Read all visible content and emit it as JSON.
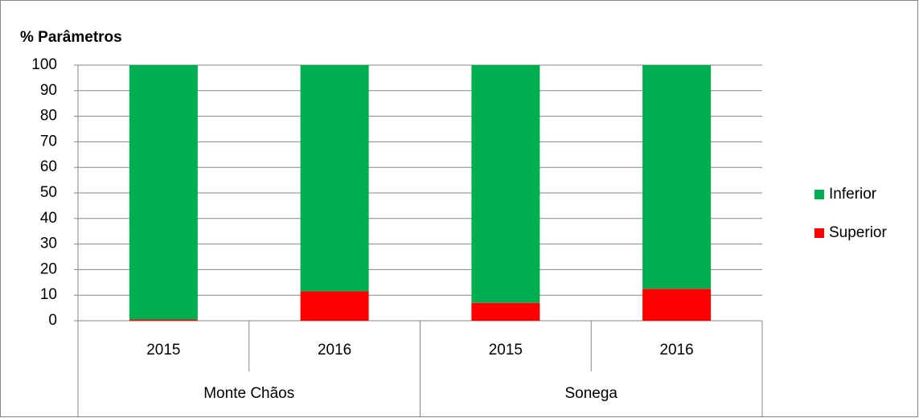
{
  "chart_data": {
    "type": "stacked_bar",
    "title": "% Parâmetros",
    "categories": [
      "2015",
      "2016",
      "2015",
      "2016"
    ],
    "groups": [
      "Monte Chãos",
      "Sonega"
    ],
    "series": [
      {
        "name": "Inferior",
        "color": "#00b050",
        "values": [
          99.5,
          88.5,
          93,
          87.5
        ]
      },
      {
        "name": "Superior",
        "color": "#ff0000",
        "values": [
          0.5,
          11.5,
          7,
          12.5
        ]
      }
    ],
    "ylim": [
      0,
      100
    ],
    "yticks": [
      0,
      10,
      20,
      30,
      40,
      50,
      60,
      70,
      80,
      90,
      100
    ],
    "grid": true,
    "legend": "right"
  }
}
